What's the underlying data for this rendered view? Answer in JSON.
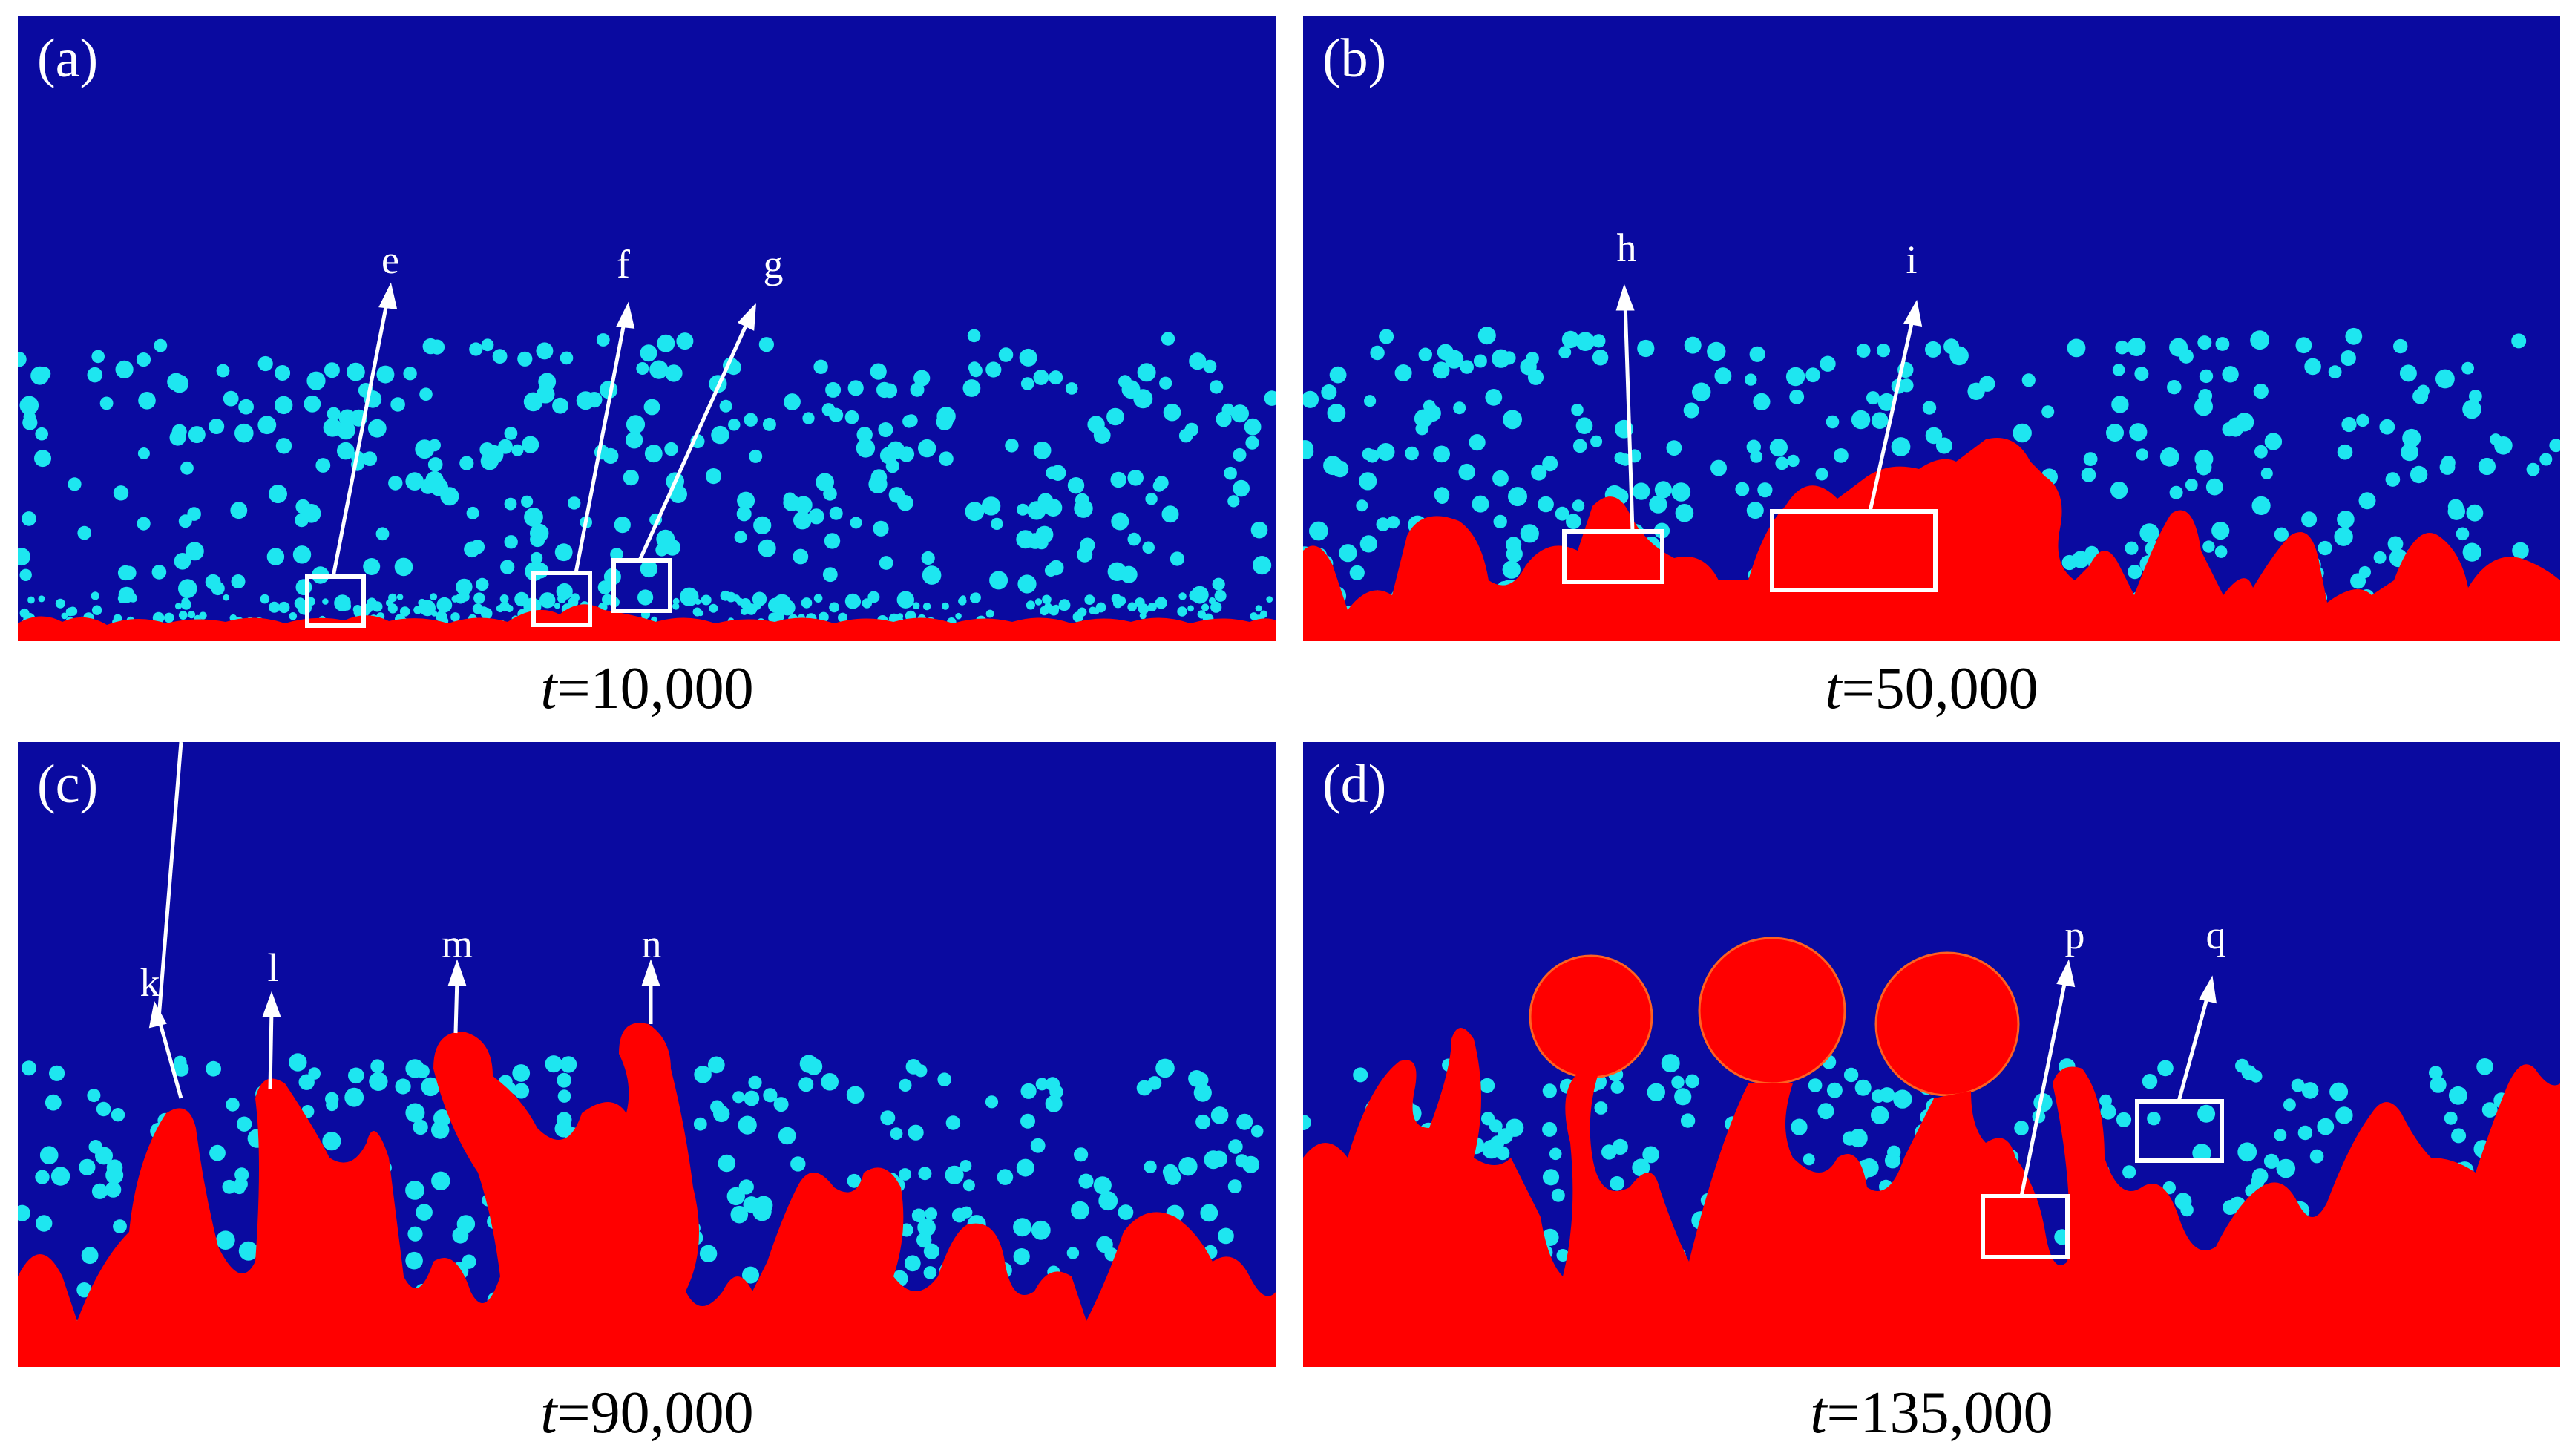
{
  "colors": {
    "background_fluid": "#0A0AA0",
    "liquid_phase": "#FF0000",
    "particles": "#1EE6F0",
    "annotation": "#FFFFFF"
  },
  "panels": [
    {
      "letter": "(a)",
      "time_var": "t",
      "time_value": "=10,000",
      "callouts": [
        "e",
        "f",
        "g"
      ]
    },
    {
      "letter": "(b)",
      "time_var": "t",
      "time_value": "=50,000",
      "callouts": [
        "h",
        "i"
      ]
    },
    {
      "letter": "(c)",
      "time_var": "t",
      "time_value": "=90,000",
      "callouts": [
        "k",
        "l",
        "m",
        "n"
      ]
    },
    {
      "letter": "(d)",
      "time_var": "t",
      "time_value": "=135,000",
      "callouts": [
        "p",
        "q"
      ]
    }
  ]
}
